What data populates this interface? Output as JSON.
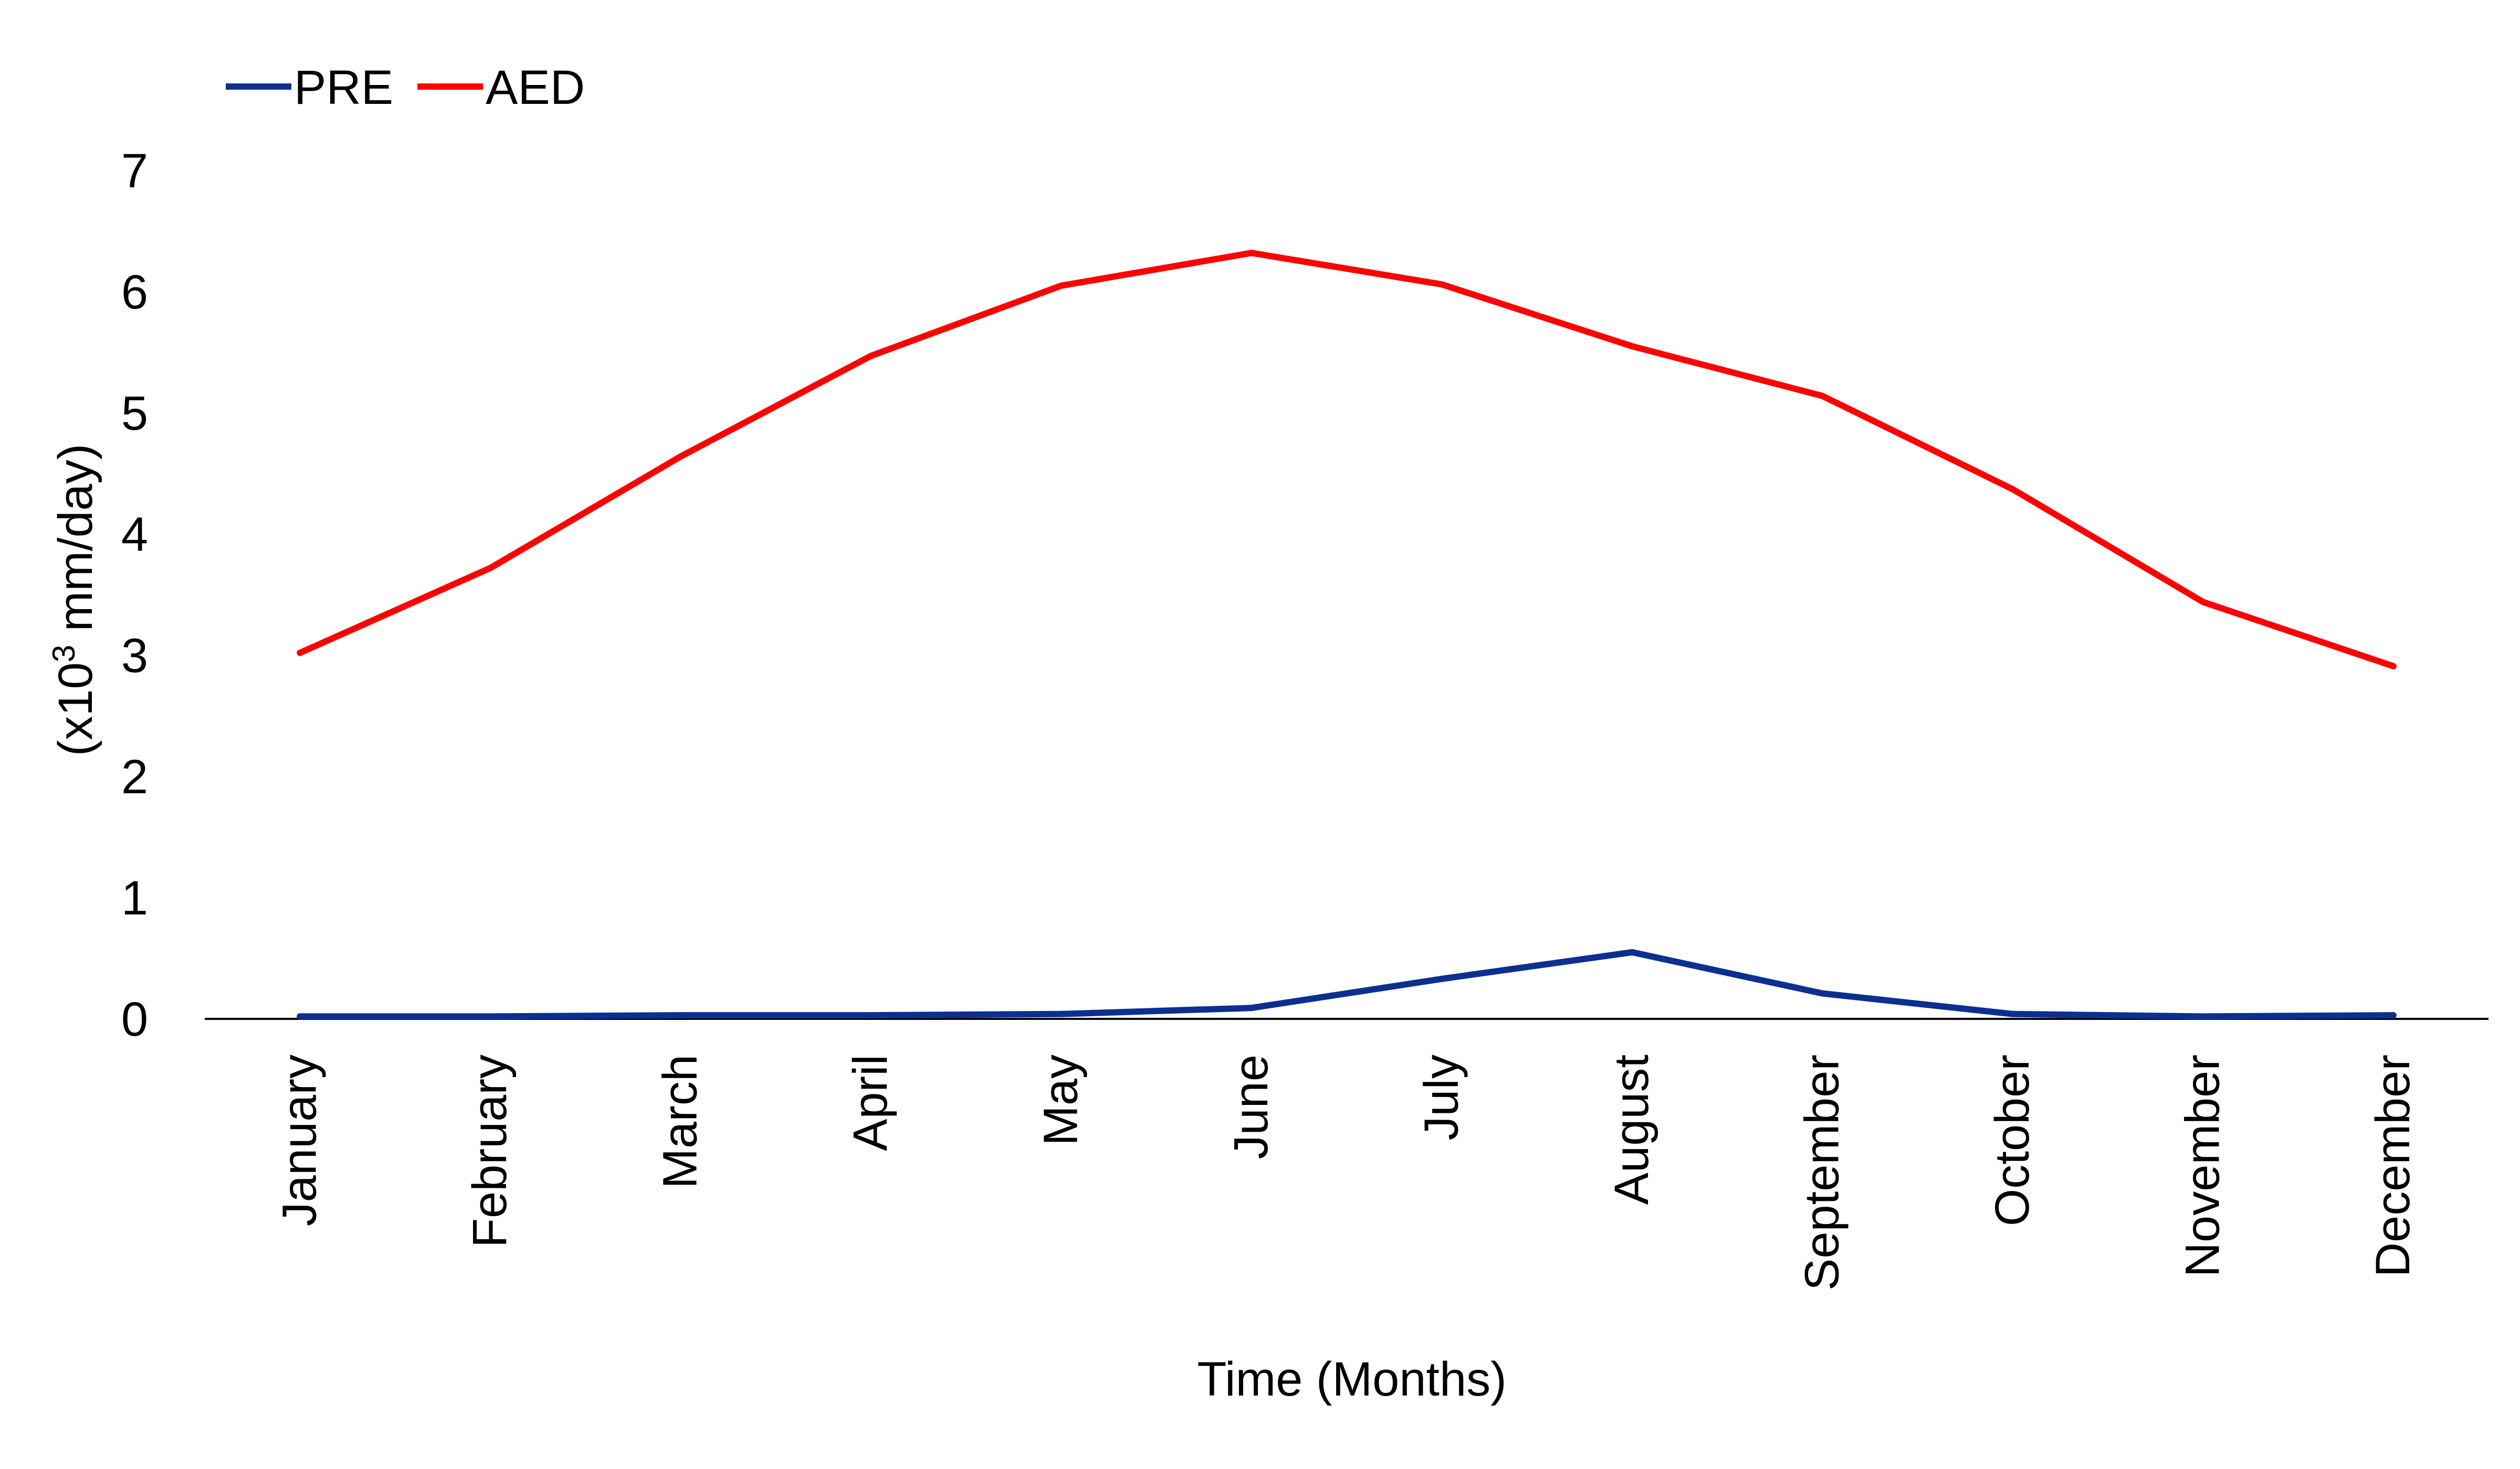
{
  "chart_data": {
    "type": "line",
    "title": "",
    "xlabel": "Time (Months)",
    "ylabel": {
      "prefix": "(x10",
      "superscript": "3",
      "suffix": " mm/day)"
    },
    "ylim": [
      0,
      7
    ],
    "yticks": [
      "0",
      "1",
      "2",
      "3",
      "4",
      "5",
      "6",
      "7"
    ],
    "grid": false,
    "legend_position": "top-left",
    "categories": [
      "January",
      "February",
      "March",
      "April",
      "May",
      "June",
      "July",
      "August",
      "September",
      "October",
      "November",
      "December"
    ],
    "series": [
      {
        "name": "PRE",
        "color": "#0d2f8f",
        "values": [
          0.02,
          0.02,
          0.03,
          0.03,
          0.04,
          0.09,
          0.33,
          0.55,
          0.21,
          0.04,
          0.02,
          0.03
        ]
      },
      {
        "name": "AED",
        "color": "#ff0000",
        "values": [
          3.02,
          3.72,
          4.64,
          5.47,
          6.05,
          6.32,
          6.06,
          5.55,
          5.14,
          4.37,
          3.44,
          2.91
        ]
      }
    ]
  }
}
